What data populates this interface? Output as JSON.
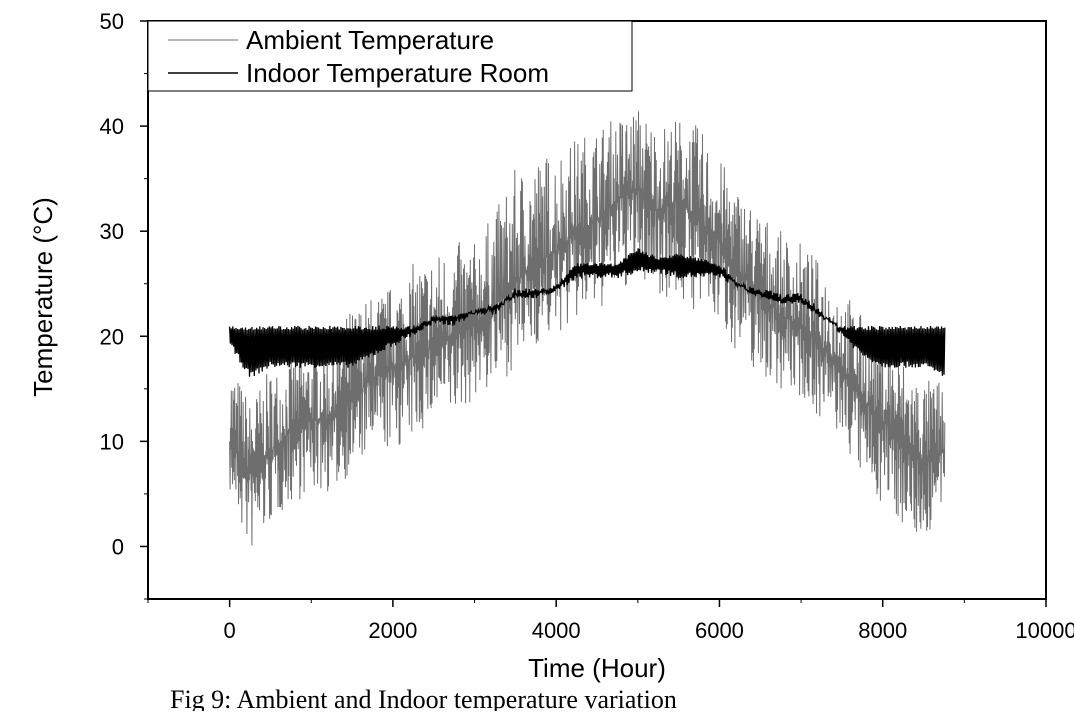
{
  "chart_data": {
    "type": "line",
    "title": "",
    "xlabel": "Time (Hour)",
    "ylabel": "Temperature (°C)",
    "xlim": [
      -1000,
      10000
    ],
    "ylim": [
      -5,
      50
    ],
    "x_ticks": [
      0,
      2000,
      4000,
      6000,
      8000,
      10000
    ],
    "x_tick_labels": [
      "0",
      "2000",
      "4000",
      "6000",
      "8000",
      "10000"
    ],
    "y_ticks": [
      0,
      10,
      20,
      30,
      40,
      50
    ],
    "y_tick_labels": [
      "0",
      "10",
      "20",
      "30",
      "40",
      "50"
    ],
    "legend_position": "top-left",
    "grid": false,
    "series": [
      {
        "name": "Ambient Temperature",
        "color": "#6e6e6e",
        "x": [
          0,
          250,
          500,
          750,
          1000,
          1250,
          1500,
          1750,
          2000,
          2250,
          2500,
          2750,
          3000,
          3250,
          3500,
          3750,
          4000,
          4250,
          4500,
          4750,
          5000,
          5250,
          5500,
          5750,
          6000,
          6250,
          6500,
          6750,
          7000,
          7250,
          7500,
          7750,
          8000,
          8250,
          8500,
          8760
        ],
        "values_center": [
          10,
          7,
          9,
          11,
          12,
          12,
          14,
          16,
          17,
          18,
          19,
          20,
          21,
          23,
          25,
          27,
          28,
          30,
          31,
          33,
          34,
          32,
          33,
          31,
          29,
          26,
          24,
          22,
          21,
          19,
          17,
          14,
          12,
          10,
          8,
          9
        ],
        "values_min": [
          5,
          -1,
          2,
          4,
          5,
          5,
          7,
          9,
          9,
          10,
          12,
          12,
          14,
          15,
          17,
          19,
          20,
          21,
          22,
          24,
          25,
          24,
          23,
          22,
          21,
          18,
          16,
          15,
          14,
          12,
          10,
          6,
          4,
          2,
          0,
          4
        ],
        "values_max": [
          18,
          14,
          17,
          18,
          19,
          20,
          23,
          24,
          25,
          27,
          28,
          29,
          29,
          32,
          36,
          37,
          38,
          39,
          40,
          41,
          42,
          40,
          41,
          40,
          37,
          34,
          32,
          30,
          29,
          27,
          25,
          22,
          20,
          18,
          16,
          16
        ]
      },
      {
        "name": "Indoor Temperature Room",
        "color": "#000000",
        "x": [
          0,
          250,
          500,
          750,
          1000,
          1250,
          1500,
          1750,
          2000,
          2250,
          2500,
          2750,
          3000,
          3250,
          3500,
          3750,
          4000,
          4250,
          4500,
          4750,
          5000,
          5250,
          5500,
          5750,
          6000,
          6250,
          6500,
          6750,
          7000,
          7250,
          7500,
          7750,
          8000,
          8250,
          8500,
          8760
        ],
        "values_low": [
          19,
          16,
          17,
          17,
          17,
          17,
          17,
          18,
          19,
          20,
          21,
          21,
          22,
          22,
          24,
          24,
          24,
          25.5,
          25.5,
          25.5,
          26,
          26,
          25.5,
          25.5,
          25.5,
          24.5,
          24,
          23.5,
          23.5,
          22,
          20,
          18,
          17,
          17,
          17,
          16
        ],
        "values_high": [
          21,
          21,
          21,
          21,
          21,
          21,
          21,
          21,
          21,
          21,
          22,
          22,
          22.5,
          23,
          24,
          24,
          25,
          27,
          27,
          27,
          28.5,
          27.5,
          28,
          27.5,
          27,
          25,
          24,
          23.5,
          23.5,
          22,
          21,
          21,
          21,
          21,
          21,
          21
        ]
      }
    ]
  },
  "caption": "Fig 9: Ambient and Indoor temperature variation"
}
